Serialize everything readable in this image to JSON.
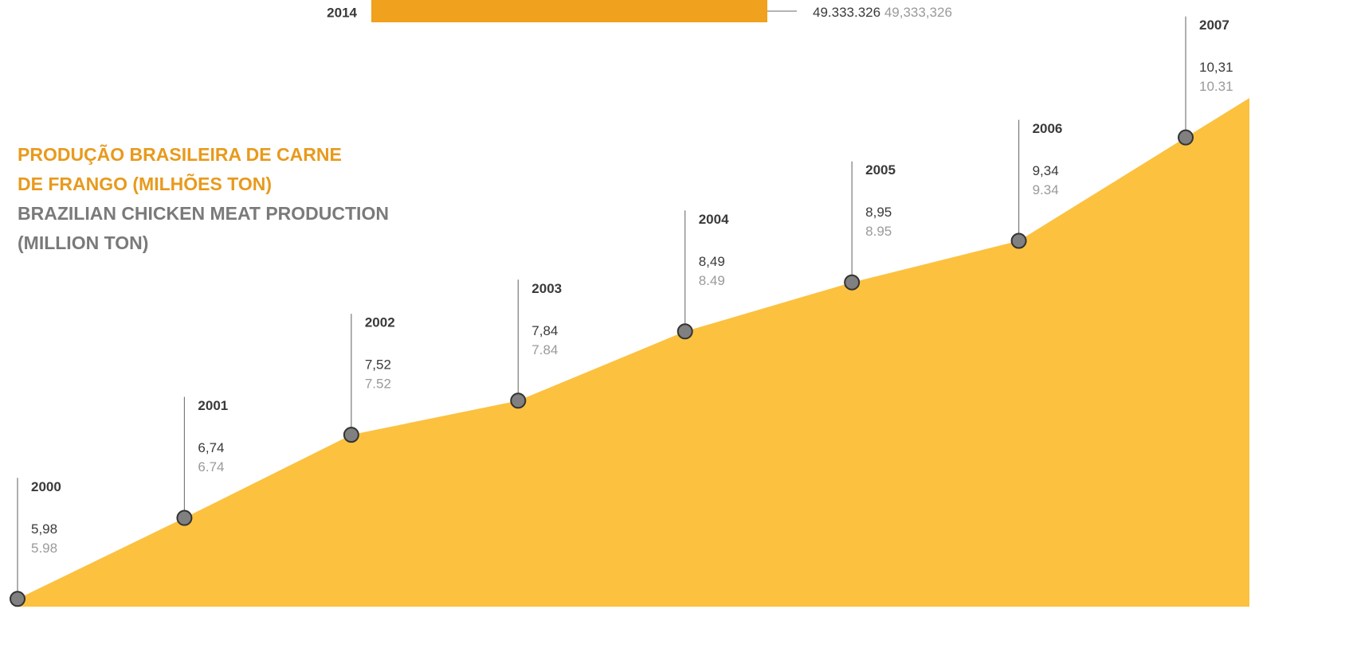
{
  "chart_data": [
    {
      "type": "area",
      "title": "PRODUÇÃO BRASILEIRA DE CARNE DE FRANGO (MILHÕES TON)",
      "subtitle": "BRAZILIAN CHICKEN MEAT PRODUCTION (MILLION TON)",
      "categories": [
        "2000",
        "2001",
        "2002",
        "2003",
        "2004",
        "2005",
        "2006",
        "2007"
      ],
      "values": [
        5.98,
        6.74,
        7.52,
        7.84,
        8.49,
        8.95,
        9.34,
        10.31
      ],
      "value_labels": [
        "5,98",
        "6,74",
        "7,52",
        "7,84",
        "8,49",
        "8,95",
        "9,34",
        "10,31"
      ],
      "ylim": [
        5.9,
        11.6
      ],
      "color": "#fcc13f"
    },
    {
      "type": "bar",
      "categories": [
        "2014"
      ],
      "values": [
        49333326
      ],
      "value_labels": [
        "49.333.326"
      ],
      "value_labels_en": [
        "49,333,326"
      ],
      "color": "#f0a11d"
    }
  ]
}
